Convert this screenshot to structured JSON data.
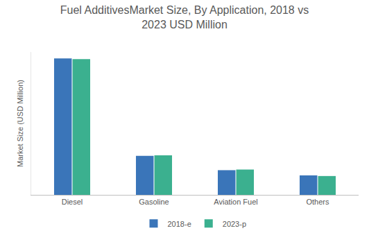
{
  "chart_data": {
    "type": "bar",
    "title": "Fuel AdditivesMarket Size, By Application, 2018 vs\n2023 USD Million",
    "y_label": "Market Size (USD Million)",
    "categories": [
      "Diesel",
      "Gasoline",
      "Aviation Fuel",
      "Others"
    ],
    "series": [
      {
        "name": "2018-e",
        "color": "#3a75b9",
        "values": [
          210,
          60,
          38,
          30
        ]
      },
      {
        "name": "2023-p",
        "color": "#3bb08f",
        "values": [
          209,
          61,
          39,
          29
        ]
      }
    ],
    "ylim": [
      0,
      220
    ],
    "tick_labels": "x",
    "grid": false,
    "legend": "bottom"
  }
}
